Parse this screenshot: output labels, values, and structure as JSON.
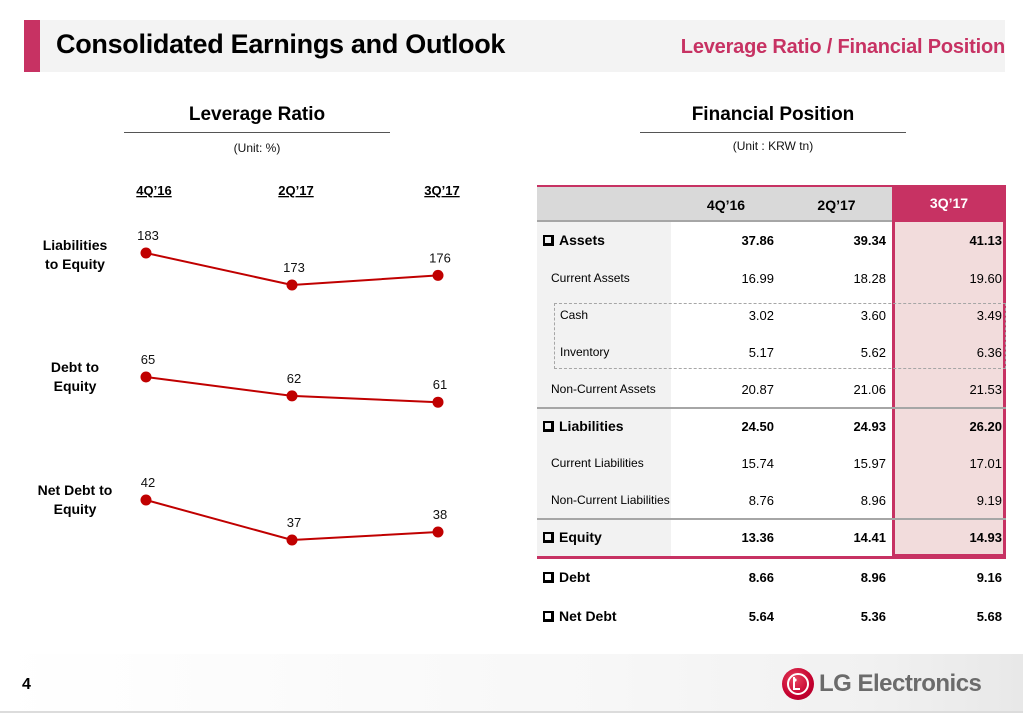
{
  "header": {
    "title": "Consolidated Earnings and Outlook",
    "subtitle": "Leverage Ratio / Financial Position",
    "accent_color": "#c73263"
  },
  "leverage": {
    "title": "Leverage Ratio",
    "unit": "(Unit: %)"
  },
  "financial": {
    "title": "Financial Position",
    "unit": "(Unit : KRW tn)",
    "columns": [
      "4Q’16",
      "2Q’17",
      "3Q’17"
    ],
    "highlight_column": "3Q’17",
    "rows": [
      {
        "label": "Assets",
        "values": [
          "37.86",
          "39.34",
          "41.13"
        ],
        "style": "bold",
        "checkbox": true
      },
      {
        "label": "Current Assets",
        "values": [
          "16.99",
          "18.28",
          "19.60"
        ],
        "style": "sub",
        "checkbox": false
      },
      {
        "label": "Cash",
        "values": [
          "3.02",
          "3.60",
          "3.49"
        ],
        "style": "subsub",
        "checkbox": false
      },
      {
        "label": "Inventory",
        "values": [
          "5.17",
          "5.62",
          "6.36"
        ],
        "style": "subsub",
        "checkbox": false
      },
      {
        "label": "Non-Current Assets",
        "values": [
          "20.87",
          "21.06",
          "21.53"
        ],
        "style": "sub",
        "checkbox": false
      },
      {
        "label": "Liabilities",
        "values": [
          "24.50",
          "24.93",
          "26.20"
        ],
        "style": "bold",
        "checkbox": true
      },
      {
        "label": "Current Liabilities",
        "values": [
          "15.74",
          "15.97",
          "17.01"
        ],
        "style": "sub",
        "checkbox": false
      },
      {
        "label": "Non-Current Liabilities",
        "values": [
          "8.76",
          "8.96",
          "9.19"
        ],
        "style": "sub",
        "checkbox": false
      },
      {
        "label": "Equity",
        "values": [
          "13.36",
          "14.41",
          "14.93"
        ],
        "style": "bold",
        "checkbox": true
      },
      {
        "label": "Debt",
        "values": [
          "8.66",
          "8.96",
          "9.16"
        ],
        "style": "bold",
        "checkbox": true
      },
      {
        "label": "Net Debt",
        "values": [
          "5.64",
          "5.36",
          "5.68"
        ],
        "style": "bold",
        "checkbox": true
      }
    ]
  },
  "chart_data": {
    "type": "line",
    "title": "Leverage Ratio",
    "subtitle": "(Unit: %)",
    "categories": [
      "4Q’16",
      "2Q’17",
      "3Q’17"
    ],
    "xlabel": "",
    "ylabel": "%",
    "grid": false,
    "legend": "none",
    "series_color": "#c00000",
    "series": [
      {
        "name": "Liabilities to Equity",
        "label_lines": [
          "Liabilities",
          "to Equity"
        ],
        "values": [
          183,
          173,
          176
        ]
      },
      {
        "name": "Debt to Equity",
        "label_lines": [
          "Debt to",
          "Equity"
        ],
        "values": [
          65,
          62,
          61
        ]
      },
      {
        "name": "Net Debt to Equity",
        "label_lines": [
          "Net Debt to",
          "Equity"
        ],
        "values": [
          42,
          37,
          38
        ]
      }
    ]
  },
  "footer": {
    "page_number": "4",
    "brand": "LG Electronics"
  }
}
